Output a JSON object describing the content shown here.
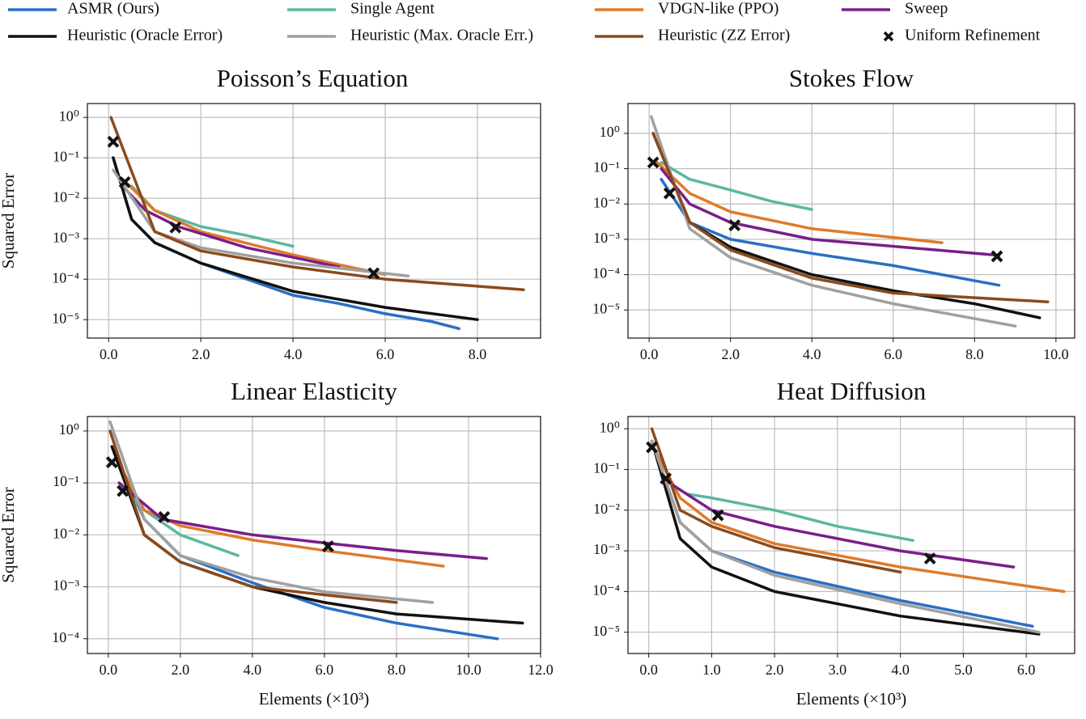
{
  "chart_data": [
    {
      "type": "line",
      "title": "Poisson’s Equation",
      "y_label": "Squared Error",
      "log_y": true,
      "grid": true,
      "legend": "top",
      "xlim": [
        -0.46,
        9.37
      ],
      "ylim": [
        3.5e-06,
        2.2
      ],
      "xticks": [
        {
          "value": 0,
          "label": "0.0"
        },
        {
          "value": 2,
          "label": "2.0"
        },
        {
          "value": 4,
          "label": "4.0"
        },
        {
          "value": 6,
          "label": "6.0"
        },
        {
          "value": 8,
          "label": "8.0"
        }
      ],
      "yticks": [
        {
          "value": 1,
          "label": "10⁰"
        },
        {
          "value": 0.1,
          "label": "10⁻¹"
        },
        {
          "value": 0.01,
          "label": "10⁻²"
        },
        {
          "value": 0.001,
          "label": "10⁻³"
        },
        {
          "value": 0.0001,
          "label": "10⁻⁴"
        },
        {
          "value": 1e-05,
          "label": "10⁻⁵"
        }
      ],
      "series": [
        {
          "name": "ASMR (Ours)",
          "color": "#2a6fc4",
          "x": [
            0.1,
            0.5,
            1,
            2,
            3,
            4,
            5,
            6,
            7,
            7.6
          ],
          "values": [
            0.1,
            0.003,
            0.0008,
            0.00025,
            0.0001,
            4e-05,
            2.5e-05,
            1.4e-05,
            9e-06,
            6e-06
          ]
        },
        {
          "name": "Single Agent",
          "color": "#5bb8a0",
          "x": [
            0.5,
            1,
            2,
            3,
            4
          ],
          "values": [
            0.02,
            0.005,
            0.002,
            0.0012,
            0.00065
          ]
        },
        {
          "name": "VDGN-like (PPO)",
          "color": "#e07a2a",
          "x": [
            0.3,
            1,
            2,
            4,
            6
          ],
          "values": [
            0.03,
            0.005,
            0.0015,
            0.0004,
            0.00013
          ]
        },
        {
          "name": "Sweep",
          "color": "#7a1e8a",
          "x": [
            0.3,
            0.8,
            1.5,
            3,
            5
          ],
          "values": [
            0.02,
            0.005,
            0.002,
            0.0006,
            0.0002
          ]
        },
        {
          "name": "Heuristic (Oracle Error)",
          "color": "#111111",
          "x": [
            0.1,
            0.5,
            1,
            2,
            4,
            6,
            8
          ],
          "values": [
            0.1,
            0.003,
            0.0008,
            0.00025,
            5e-05,
            2e-05,
            1e-05
          ]
        },
        {
          "name": "Heuristic (Max. Oracle Err.)",
          "color": "#a0a0a0",
          "x": [
            0.1,
            1,
            2,
            4,
            6.5
          ],
          "values": [
            0.05,
            0.0015,
            0.0006,
            0.00025,
            0.00012
          ]
        },
        {
          "name": "Heuristic (ZZ Error)",
          "color": "#8a4a1e",
          "x": [
            0.05,
            1,
            2,
            4,
            6,
            9
          ],
          "values": [
            1,
            0.0015,
            0.0005,
            0.0002,
            0.0001,
            5.5e-05
          ]
        },
        {
          "name": "Uniform Refinement",
          "color": "#111111",
          "marker": "x",
          "x": [
            0.1,
            0.35,
            1.45,
            5.75
          ],
          "values": [
            0.25,
            0.025,
            0.0019,
            0.00014
          ]
        }
      ]
    },
    {
      "type": "line",
      "title": "Stokes Flow",
      "log_y": true,
      "grid": true,
      "xlim": [
        -0.52,
        10.46
      ],
      "ylim": [
        1.6e-06,
        7
      ],
      "xticks": [
        {
          "value": 0,
          "label": "0.0"
        },
        {
          "value": 2,
          "label": "2.0"
        },
        {
          "value": 4,
          "label": "4.0"
        },
        {
          "value": 6,
          "label": "6.0"
        },
        {
          "value": 8,
          "label": "8.0"
        },
        {
          "value": 10,
          "label": "10.0"
        }
      ],
      "yticks": [
        {
          "value": 1,
          "label": "10⁰"
        },
        {
          "value": 0.1,
          "label": "10⁻¹"
        },
        {
          "value": 0.01,
          "label": "10⁻²"
        },
        {
          "value": 0.001,
          "label": "10⁻³"
        },
        {
          "value": 0.0001,
          "label": "10⁻⁴"
        },
        {
          "value": 1e-05,
          "label": "10⁻⁵"
        }
      ],
      "series": [
        {
          "name": "ASMR (Ours)",
          "color": "#2a6fc4",
          "x": [
            0.3,
            1,
            2,
            4,
            6,
            8.6
          ],
          "values": [
            0.05,
            0.003,
            0.001,
            0.0004,
            0.00018,
            5e-05
          ]
        },
        {
          "name": "Single Agent",
          "color": "#5bb8a0",
          "x": [
            0.3,
            1,
            2,
            3,
            4
          ],
          "values": [
            0.15,
            0.05,
            0.025,
            0.012,
            0.007
          ]
        },
        {
          "name": "VDGN-like (PPO)",
          "color": "#e07a2a",
          "x": [
            0.2,
            1,
            2,
            4,
            7.2
          ],
          "values": [
            0.15,
            0.02,
            0.006,
            0.002,
            0.0008
          ]
        },
        {
          "name": "Sweep",
          "color": "#7a1e8a",
          "x": [
            0.3,
            1,
            2,
            4,
            8.6
          ],
          "values": [
            0.1,
            0.01,
            0.003,
            0.001,
            0.00035
          ]
        },
        {
          "name": "Heuristic (Oracle Error)",
          "color": "#111111",
          "x": [
            0.1,
            1,
            2,
            4,
            6,
            8,
            9.6
          ],
          "values": [
            1,
            0.003,
            0.0006,
            0.0001,
            3.5e-05,
            1.5e-05,
            6e-06
          ]
        },
        {
          "name": "Heuristic (Max. Oracle Err.)",
          "color": "#a0a0a0",
          "x": [
            0.05,
            1,
            2,
            4,
            6,
            9
          ],
          "values": [
            3,
            0.002,
            0.0003,
            5e-05,
            1.5e-05,
            3.5e-06
          ]
        },
        {
          "name": "Heuristic (ZZ Error)",
          "color": "#8a4a1e",
          "x": [
            0.1,
            1,
            2,
            4,
            6,
            9.8
          ],
          "values": [
            1,
            0.003,
            0.0005,
            8e-05,
            3e-05,
            1.7e-05
          ]
        },
        {
          "name": "Uniform Refinement",
          "color": "#111111",
          "marker": "x",
          "x": [
            0.1,
            0.5,
            2.1,
            8.55
          ],
          "values": [
            0.15,
            0.02,
            0.0025,
            0.00033
          ]
        }
      ]
    },
    {
      "type": "line",
      "title": "Linear Elasticity",
      "y_label": "Squared Error",
      "x_label": "Elements (×10³)",
      "log_y": true,
      "grid": true,
      "xlim": [
        -0.58,
        12
      ],
      "ylim": [
        5.2e-05,
        1.9
      ],
      "xticks": [
        {
          "value": 0,
          "label": "0.0"
        },
        {
          "value": 2,
          "label": "2.0"
        },
        {
          "value": 4,
          "label": "4.0"
        },
        {
          "value": 6,
          "label": "6.0"
        },
        {
          "value": 8,
          "label": "8.0"
        },
        {
          "value": 10,
          "label": "10.0"
        },
        {
          "value": 12,
          "label": "12.0"
        }
      ],
      "yticks": [
        {
          "value": 1,
          "label": "10⁰"
        },
        {
          "value": 0.1,
          "label": "10⁻¹"
        },
        {
          "value": 0.01,
          "label": "10⁻²"
        },
        {
          "value": 0.001,
          "label": "10⁻³"
        },
        {
          "value": 0.0001,
          "label": "10⁻⁴"
        }
      ],
      "series": [
        {
          "name": "ASMR (Ours)",
          "color": "#2a6fc4",
          "x": [
            0.1,
            1,
            2,
            4,
            6,
            8,
            10.8
          ],
          "values": [
            0.5,
            0.02,
            0.004,
            0.0012,
            0.0004,
            0.0002,
            0.0001
          ]
        },
        {
          "name": "Single Agent",
          "color": "#5bb8a0",
          "x": [
            0.3,
            1,
            2,
            3.6
          ],
          "values": [
            0.1,
            0.03,
            0.01,
            0.004
          ]
        },
        {
          "name": "VDGN-like (PPO)",
          "color": "#e07a2a",
          "x": [
            0.2,
            1,
            2,
            4,
            6,
            9.3
          ],
          "values": [
            0.3,
            0.03,
            0.015,
            0.008,
            0.005,
            0.0025
          ]
        },
        {
          "name": "Sweep",
          "color": "#7a1e8a",
          "x": [
            0.3,
            1.5,
            4,
            6,
            8,
            10.5
          ],
          "values": [
            0.1,
            0.02,
            0.01,
            0.007,
            0.005,
            0.0035
          ]
        },
        {
          "name": "Heuristic (Oracle Error)",
          "color": "#111111",
          "x": [
            0.1,
            1,
            2,
            4,
            6,
            8,
            11.5
          ],
          "values": [
            0.5,
            0.01,
            0.003,
            0.001,
            0.0005,
            0.0003,
            0.0002
          ]
        },
        {
          "name": "Heuristic (Max. Oracle Err.)",
          "color": "#a0a0a0",
          "x": [
            0.05,
            1,
            2,
            4,
            6,
            9
          ],
          "values": [
            1.5,
            0.02,
            0.004,
            0.0015,
            0.0008,
            0.0005
          ]
        },
        {
          "name": "Heuristic (ZZ Error)",
          "color": "#8a4a1e",
          "x": [
            0.05,
            1,
            2,
            4,
            6,
            8
          ],
          "values": [
            1,
            0.01,
            0.003,
            0.001,
            0.0007,
            0.0005
          ]
        },
        {
          "name": "Uniform Refinement",
          "color": "#111111",
          "marker": "x",
          "x": [
            0.1,
            0.4,
            1.55,
            6.1
          ],
          "values": [
            0.25,
            0.07,
            0.022,
            0.006
          ]
        }
      ]
    },
    {
      "type": "line",
      "title": "Heat Diffusion",
      "x_label": "Elements (×10³)",
      "log_y": true,
      "grid": true,
      "xlim": [
        -0.33,
        6.77
      ],
      "ylim": [
        3e-06,
        2
      ],
      "xticks": [
        {
          "value": 0,
          "label": "0.0"
        },
        {
          "value": 1,
          "label": "1.0"
        },
        {
          "value": 2,
          "label": "2.0"
        },
        {
          "value": 3,
          "label": "3.0"
        },
        {
          "value": 4,
          "label": "4.0"
        },
        {
          "value": 5,
          "label": "5.0"
        },
        {
          "value": 6,
          "label": "6.0"
        }
      ],
      "yticks": [
        {
          "value": 1,
          "label": "10⁰"
        },
        {
          "value": 0.1,
          "label": "10⁻¹"
        },
        {
          "value": 0.01,
          "label": "10⁻²"
        },
        {
          "value": 0.001,
          "label": "10⁻³"
        },
        {
          "value": 0.0001,
          "label": "10⁻⁴"
        },
        {
          "value": 1e-05,
          "label": "10⁻⁵"
        }
      ],
      "series": [
        {
          "name": "ASMR (Ours)",
          "color": "#2a6fc4",
          "x": [
            0.1,
            0.5,
            1,
            2,
            4,
            6.1
          ],
          "values": [
            0.3,
            0.005,
            0.001,
            0.0003,
            6e-05,
            1.4e-05
          ]
        },
        {
          "name": "Single Agent",
          "color": "#5bb8a0",
          "x": [
            0.6,
            1,
            2,
            3,
            4.2
          ],
          "values": [
            0.025,
            0.02,
            0.01,
            0.004,
            0.0018
          ]
        },
        {
          "name": "VDGN-like (PPO)",
          "color": "#e07a2a",
          "x": [
            0.1,
            0.5,
            1,
            2,
            4,
            6.6
          ],
          "values": [
            0.3,
            0.02,
            0.005,
            0.0015,
            0.0004,
            0.0001
          ]
        },
        {
          "name": "Sweep",
          "color": "#7a1e8a",
          "x": [
            0.3,
            1,
            2,
            4,
            5.8
          ],
          "values": [
            0.05,
            0.01,
            0.004,
            0.001,
            0.0004
          ]
        },
        {
          "name": "Heuristic (Oracle Error)",
          "color": "#111111",
          "x": [
            0.05,
            0.5,
            1,
            2,
            4,
            6.2
          ],
          "values": [
            0.5,
            0.002,
            0.0004,
            0.0001,
            2.5e-05,
            9e-06
          ]
        },
        {
          "name": "Heuristic (Max. Oracle Err.)",
          "color": "#a0a0a0",
          "x": [
            0.05,
            0.5,
            1,
            2,
            4,
            6.2
          ],
          "values": [
            0.5,
            0.005,
            0.001,
            0.00025,
            5e-05,
            1e-05
          ]
        },
        {
          "name": "Heuristic (ZZ Error)",
          "color": "#8a4a1e",
          "x": [
            0.05,
            0.5,
            1,
            2,
            4
          ],
          "values": [
            1,
            0.01,
            0.004,
            0.0012,
            0.0003
          ]
        },
        {
          "name": "Uniform Refinement",
          "color": "#111111",
          "marker": "x",
          "x": [
            0.05,
            0.27,
            1.1,
            4.47
          ],
          "values": [
            0.35,
            0.06,
            0.0075,
            0.00065
          ]
        }
      ]
    }
  ]
}
